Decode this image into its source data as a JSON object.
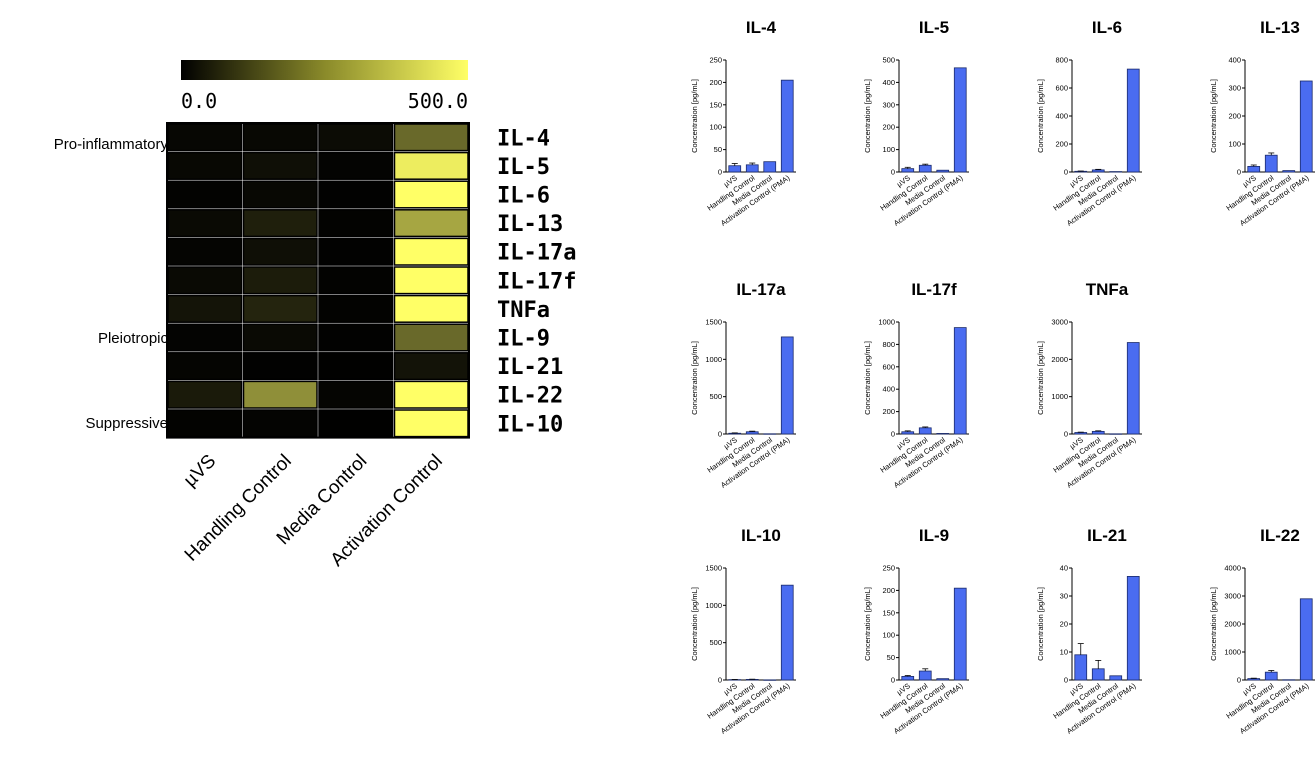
{
  "colorbar": {
    "min_label": "0.0",
    "max_label": "500.0",
    "low_color": "#000000",
    "high_color": "#ffff66"
  },
  "heatmap": {
    "groups": [
      "Pro-inflammatory",
      "Pleiotropic",
      "Suppressive"
    ],
    "rows": [
      "IL-4",
      "IL-5",
      "IL-6",
      "IL-13",
      "IL-17a",
      "IL-17f",
      "TNFa",
      "IL-9",
      "IL-21",
      "IL-22",
      "IL-10"
    ],
    "columns": [
      "µVS",
      "Handling Control",
      "Media Control",
      "Activation Control"
    ]
  },
  "chart_data": [
    {
      "type": "bar",
      "title": "IL-4",
      "ylabel": "Concentration [pg/mL]",
      "categories": [
        "µVS",
        "Handling Control",
        "Media Control",
        "Activation Control (PMA)"
      ],
      "values": [
        14,
        16,
        23,
        205
      ],
      "errors": [
        5,
        4,
        0,
        0
      ],
      "ylim": [
        0,
        250
      ],
      "yticks": [
        0,
        50,
        100,
        150,
        200,
        250
      ]
    },
    {
      "type": "bar",
      "title": "IL-5",
      "ylabel": "Concentration [pg/mL]",
      "categories": [
        "µVS",
        "Handling Control",
        "Media Control",
        "Activation Control (PMA)"
      ],
      "values": [
        15,
        30,
        8,
        465
      ],
      "errors": [
        6,
        5,
        0,
        0
      ],
      "ylim": [
        0,
        500
      ],
      "yticks": [
        0,
        100,
        200,
        300,
        400,
        500
      ]
    },
    {
      "type": "bar",
      "title": "IL-6",
      "ylabel": "Concentration [pg/mL]",
      "categories": [
        "µVS",
        "Handling Control",
        "Media Control",
        "Activation Control (PMA)"
      ],
      "values": [
        5,
        15,
        3,
        735
      ],
      "errors": [
        2,
        4,
        0,
        0
      ],
      "ylim": [
        0,
        800
      ],
      "yticks": [
        0,
        200,
        400,
        600,
        800
      ]
    },
    {
      "type": "bar",
      "title": "IL-13",
      "ylabel": "Concentration [pg/mL]",
      "categories": [
        "µVS",
        "Handling Control",
        "Media Control",
        "Activation Control (PMA)"
      ],
      "values": [
        20,
        60,
        5,
        325
      ],
      "errors": [
        5,
        8,
        0,
        0
      ],
      "ylim": [
        0,
        400
      ],
      "yticks": [
        0,
        100,
        200,
        300,
        400
      ]
    },
    {
      "type": "bar",
      "title": "IL-17a",
      "ylabel": "Concentration [pg/mL]",
      "categories": [
        "µVS",
        "Handling Control",
        "Media Control",
        "Activation Control (PMA)"
      ],
      "values": [
        10,
        30,
        3,
        1300
      ],
      "errors": [
        5,
        8,
        0,
        0
      ],
      "ylim": [
        0,
        1500
      ],
      "yticks": [
        0,
        500,
        1000,
        1500
      ]
    },
    {
      "type": "bar",
      "title": "IL-17f",
      "ylabel": "Concentration [pg/mL]",
      "categories": [
        "µVS",
        "Handling Control",
        "Media Control",
        "Activation Control (PMA)"
      ],
      "values": [
        20,
        55,
        5,
        950
      ],
      "errors": [
        8,
        8,
        0,
        0
      ],
      "ylim": [
        0,
        1000
      ],
      "yticks": [
        0,
        200,
        400,
        600,
        800,
        1000
      ]
    },
    {
      "type": "bar",
      "title": "TNFa",
      "ylabel": "Concentration [pg/mL]",
      "categories": [
        "µVS",
        "Handling Control",
        "Media Control",
        "Activation Control (PMA)"
      ],
      "values": [
        40,
        70,
        5,
        2450
      ],
      "errors": [
        10,
        15,
        0,
        0
      ],
      "ylim": [
        0,
        3000
      ],
      "yticks": [
        0,
        1000,
        2000,
        3000
      ]
    },
    {
      "type": "bar",
      "title": "IL-10",
      "ylabel": "Concentration [pg/mL]",
      "categories": [
        "µVS",
        "Handling Control",
        "Media Control",
        "Activation Control (PMA)"
      ],
      "values": [
        5,
        8,
        2,
        1270
      ],
      "errors": [
        2,
        3,
        0,
        0
      ],
      "ylim": [
        0,
        1500
      ],
      "yticks": [
        0,
        500,
        1000,
        1500
      ]
    },
    {
      "type": "bar",
      "title": "IL-9",
      "ylabel": "Concentration [pg/mL]",
      "categories": [
        "µVS",
        "Handling Control",
        "Media Control",
        "Activation Control (PMA)"
      ],
      "values": [
        8,
        20,
        3,
        205
      ],
      "errors": [
        2,
        5,
        0,
        0
      ],
      "ylim": [
        0,
        250
      ],
      "yticks": [
        0,
        50,
        100,
        150,
        200,
        250
      ]
    },
    {
      "type": "bar",
      "title": "IL-21",
      "ylabel": "Concentration [pg/mL]",
      "categories": [
        "µVS",
        "Handling Control",
        "Media Control",
        "Activation Control (PMA)"
      ],
      "values": [
        9,
        4,
        1.5,
        37
      ],
      "errors": [
        4,
        3,
        0,
        0
      ],
      "ylim": [
        0,
        40
      ],
      "yticks": [
        0,
        10,
        20,
        30,
        40
      ]
    },
    {
      "type": "bar",
      "title": "IL-22",
      "ylabel": "Concentration [pg/mL]",
      "categories": [
        "µVS",
        "Handling Control",
        "Media Control",
        "Activation Control (PMA)"
      ],
      "values": [
        50,
        280,
        10,
        2900
      ],
      "errors": [
        15,
        60,
        0,
        0
      ],
      "ylim": [
        0,
        4000
      ],
      "yticks": [
        0,
        1000,
        2000,
        3000,
        4000
      ]
    }
  ],
  "colors": {
    "bar_fill": "#4a6cf0",
    "bar_stroke": "#1a2a6a",
    "grid_line": "#000000"
  }
}
